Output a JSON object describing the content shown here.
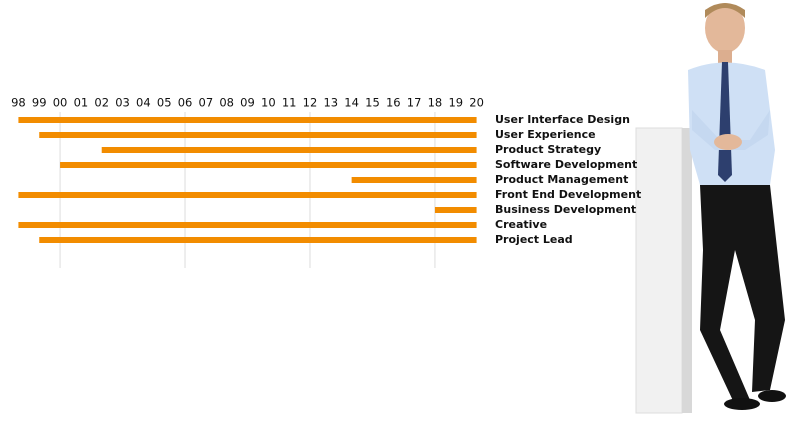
{
  "chart_data": {
    "type": "range-bar",
    "categories": [
      "User Interface Design",
      "User Experience",
      "Product Strategy",
      "Software Development",
      "Product Management",
      "Front End Development",
      "Business Development",
      "Creative",
      "Project Lead"
    ],
    "start": [
      1998,
      1999,
      2002,
      2000,
      2014,
      1998,
      2018,
      1998,
      1999
    ],
    "end": [
      2020,
      2020,
      2020,
      2020,
      2020,
      2020,
      2020,
      2020,
      2020
    ],
    "color": "#f28c00",
    "xlim": [
      1997.5,
      2020.5
    ],
    "xticks": [
      {
        "value": 1998,
        "label": "98"
      },
      {
        "value": 1999,
        "label": "99"
      },
      {
        "value": 2000,
        "label": "00"
      },
      {
        "value": 2001,
        "label": "01"
      },
      {
        "value": 2002,
        "label": "02"
      },
      {
        "value": 2003,
        "label": "03"
      },
      {
        "value": 2004,
        "label": "04"
      },
      {
        "value": 2005,
        "label": "05"
      },
      {
        "value": 2006,
        "label": "06"
      },
      {
        "value": 2007,
        "label": "07"
      },
      {
        "value": 2008,
        "label": "08"
      },
      {
        "value": 2009,
        "label": "09"
      },
      {
        "value": 2010,
        "label": "10"
      },
      {
        "value": 2011,
        "label": "11"
      },
      {
        "value": 2012,
        "label": "12"
      },
      {
        "value": 2013,
        "label": "13"
      },
      {
        "value": 2014,
        "label": "14"
      },
      {
        "value": 2015,
        "label": "15"
      },
      {
        "value": 2016,
        "label": "16"
      },
      {
        "value": 2017,
        "label": "17"
      },
      {
        "value": 2018,
        "label": "18"
      },
      {
        "value": 2019,
        "label": "19"
      },
      {
        "value": 2020,
        "label": "20"
      }
    ],
    "xgrid": [
      2000,
      2006,
      2012,
      2018
    ]
  }
}
